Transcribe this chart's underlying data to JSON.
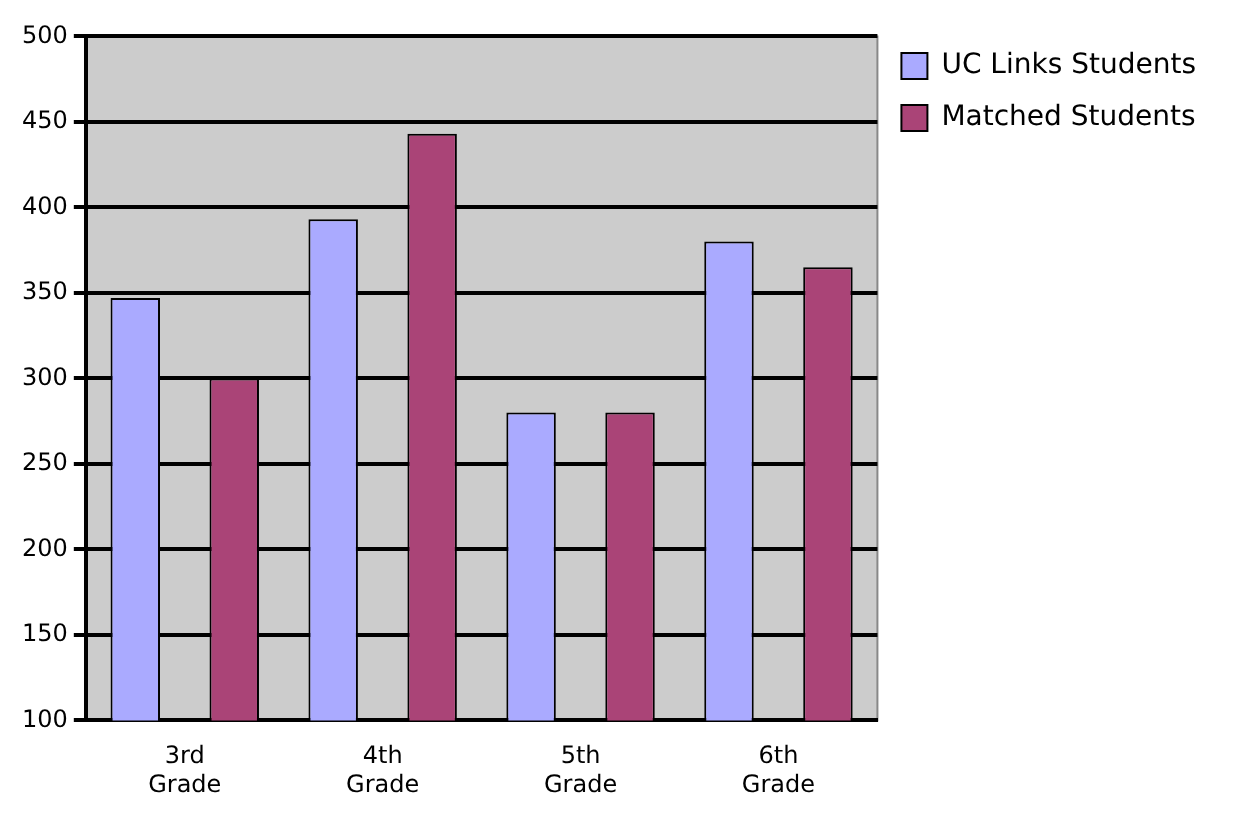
{
  "chart_data": {
    "type": "bar",
    "categories": [
      "3rd Grade",
      "4th Grade",
      "5th Grade",
      "6th Grade"
    ],
    "series": [
      {
        "name": "UC Links Students",
        "color": "#aaaaff",
        "values": [
          347,
          393,
          280,
          380
        ]
      },
      {
        "name": "Matched Students",
        "color": "#aa4477",
        "values": [
          300,
          443,
          280,
          365
        ]
      }
    ],
    "ylim": [
      100,
      500
    ],
    "yticks": [
      100,
      150,
      200,
      250,
      300,
      350,
      400,
      450,
      500
    ],
    "grid": "y",
    "legend": "top right"
  }
}
